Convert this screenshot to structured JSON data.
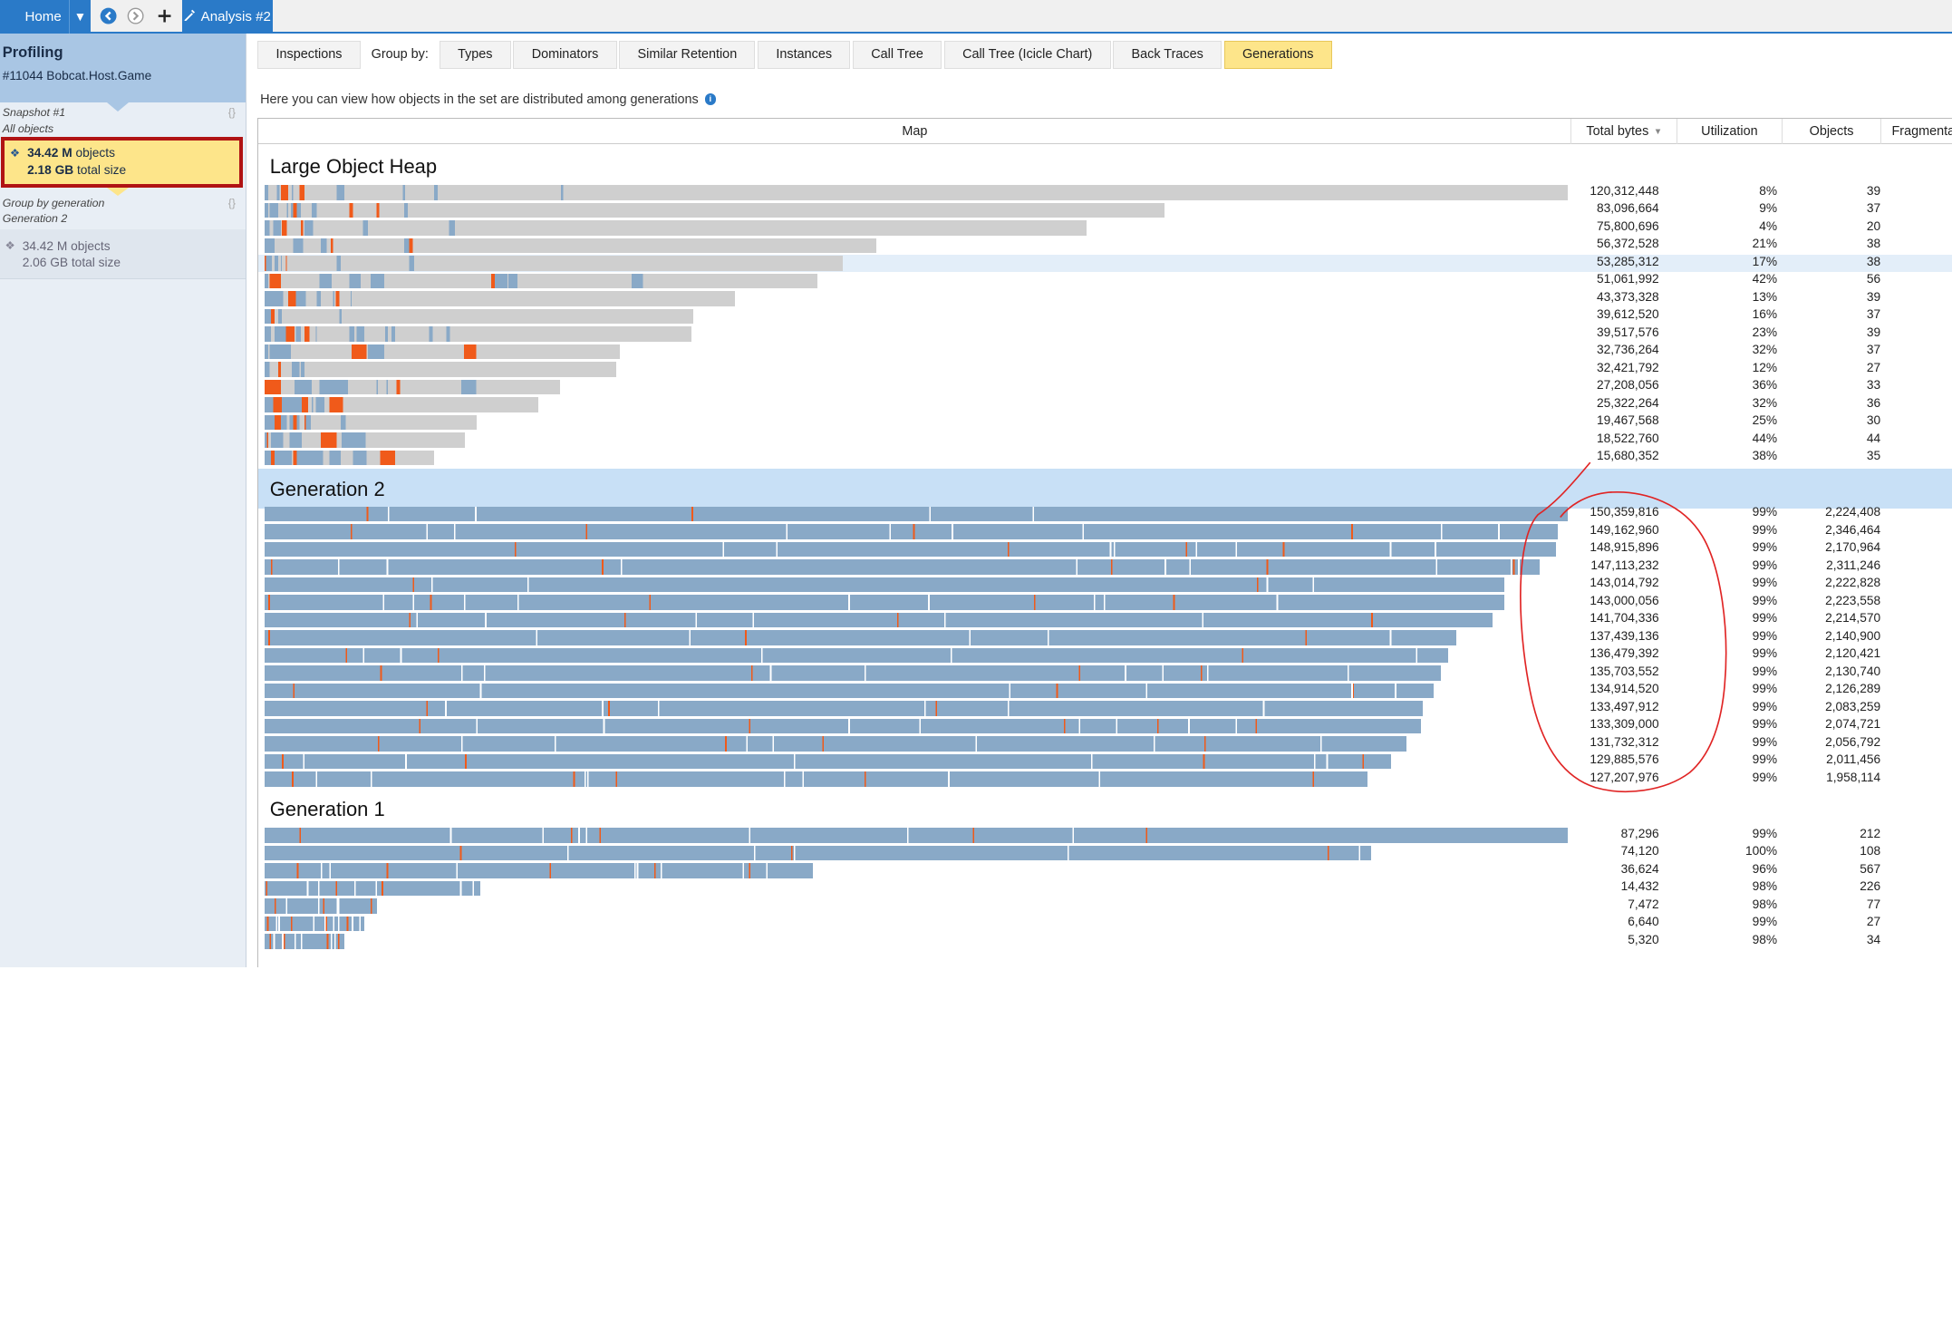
{
  "topbar": {
    "home_label": "Home",
    "analysis_tab_label": "Analysis #2",
    "icons": [
      "menu-dropdown-icon",
      "back-icon",
      "forward-icon",
      "add-icon",
      "analysis-icon"
    ]
  },
  "sidebar": {
    "title": "Profiling",
    "subtitle": "#11044 Bobcat.Host.Game",
    "snapshot_label": "Snapshot #1",
    "snapshot_sub": "All objects",
    "selected": {
      "objects_value": "34.42 M",
      "objects_unit": "objects",
      "size_value": "2.18 GB",
      "size_unit": "total size"
    },
    "group_label": "Group by generation",
    "group_sub": "Generation 2",
    "group_item": {
      "objects_value": "34.42 M",
      "objects_unit": "objects",
      "size_value": "2.06 GB",
      "size_unit": "total size"
    },
    "braces": "{}"
  },
  "tabs": {
    "items": [
      "Inspections",
      "Group by:",
      "Types",
      "Dominators",
      "Similar Retention",
      "Instances",
      "Call Tree",
      "Call Tree (Icicle Chart)",
      "Back Traces",
      "Generations"
    ],
    "active": "Generations"
  },
  "description": "Here you can view how objects in the set are distributed among generations",
  "columns": {
    "map": "Map",
    "total_bytes": "Total bytes",
    "utilization": "Utilization",
    "objects": "Objects",
    "fragmentation": "Fragmenta"
  },
  "colors": {
    "bar_blue": "#89a9c7",
    "bar_gray": "#cfcfcf",
    "accent_orange": "#f05a1a",
    "highlight_row": "#e3eef9",
    "section_band": "#c8e0f6",
    "annotation_red": "#e02424"
  },
  "sections": [
    {
      "title": "Large Object Heap",
      "rows": [
        {
          "bytes": "120,312,448",
          "util": "8%",
          "objects": "39",
          "fill": 0.08,
          "len": 1.0
        },
        {
          "bytes": "83,096,664",
          "util": "9%",
          "objects": "37",
          "fill": 0.09,
          "len": 0.691
        },
        {
          "bytes": "75,800,696",
          "util": "4%",
          "objects": "20",
          "fill": 0.04,
          "len": 0.63
        },
        {
          "bytes": "56,372,528",
          "util": "21%",
          "objects": "38",
          "fill": 0.21,
          "len": 0.469
        },
        {
          "bytes": "53,285,312",
          "util": "17%",
          "objects": "38",
          "fill": 0.17,
          "len": 0.443,
          "highlight": true
        },
        {
          "bytes": "51,061,992",
          "util": "42%",
          "objects": "56",
          "fill": 0.42,
          "len": 0.424
        },
        {
          "bytes": "43,373,328",
          "util": "13%",
          "objects": "39",
          "fill": 0.13,
          "len": 0.361
        },
        {
          "bytes": "39,612,520",
          "util": "16%",
          "objects": "37",
          "fill": 0.16,
          "len": 0.329
        },
        {
          "bytes": "39,517,576",
          "util": "23%",
          "objects": "39",
          "fill": 0.23,
          "len": 0.328
        },
        {
          "bytes": "32,736,264",
          "util": "32%",
          "objects": "37",
          "fill": 0.32,
          "len": 0.272
        },
        {
          "bytes": "32,421,792",
          "util": "12%",
          "objects": "27",
          "fill": 0.12,
          "len": 0.269
        },
        {
          "bytes": "27,208,056",
          "util": "36%",
          "objects": "33",
          "fill": 0.36,
          "len": 0.226
        },
        {
          "bytes": "25,322,264",
          "util": "32%",
          "objects": "36",
          "fill": 0.32,
          "len": 0.21
        },
        {
          "bytes": "19,467,568",
          "util": "25%",
          "objects": "30",
          "fill": 0.25,
          "len": 0.162
        },
        {
          "bytes": "18,522,760",
          "util": "44%",
          "objects": "44",
          "fill": 0.44,
          "len": 0.154
        },
        {
          "bytes": "15,680,352",
          "util": "38%",
          "objects": "35",
          "fill": 0.38,
          "len": 0.13
        }
      ]
    },
    {
      "title": "Generation 2",
      "rows": [
        {
          "bytes": "150,359,816",
          "util": "99%",
          "objects": "2,224,408",
          "fill": 0.99,
          "len": 1.0
        },
        {
          "bytes": "149,162,960",
          "util": "99%",
          "objects": "2,346,464",
          "fill": 0.99,
          "len": 0.992
        },
        {
          "bytes": "148,915,896",
          "util": "99%",
          "objects": "2,170,964",
          "fill": 0.99,
          "len": 0.99
        },
        {
          "bytes": "147,113,232",
          "util": "99%",
          "objects": "2,311,246",
          "fill": 0.99,
          "len": 0.978
        },
        {
          "bytes": "143,014,792",
          "util": "99%",
          "objects": "2,222,828",
          "fill": 0.99,
          "len": 0.951
        },
        {
          "bytes": "143,000,056",
          "util": "99%",
          "objects": "2,223,558",
          "fill": 0.99,
          "len": 0.951
        },
        {
          "bytes": "141,704,336",
          "util": "99%",
          "objects": "2,214,570",
          "fill": 0.99,
          "len": 0.942
        },
        {
          "bytes": "137,439,136",
          "util": "99%",
          "objects": "2,140,900",
          "fill": 0.99,
          "len": 0.914
        },
        {
          "bytes": "136,479,392",
          "util": "99%",
          "objects": "2,120,421",
          "fill": 0.99,
          "len": 0.908
        },
        {
          "bytes": "135,703,552",
          "util": "99%",
          "objects": "2,130,740",
          "fill": 0.99,
          "len": 0.903
        },
        {
          "bytes": "134,914,520",
          "util": "99%",
          "objects": "2,126,289",
          "fill": 0.99,
          "len": 0.897
        },
        {
          "bytes": "133,497,912",
          "util": "99%",
          "objects": "2,083,259",
          "fill": 0.99,
          "len": 0.888
        },
        {
          "bytes": "133,309,000",
          "util": "99%",
          "objects": "2,074,721",
          "fill": 0.99,
          "len": 0.887
        },
        {
          "bytes": "131,732,312",
          "util": "99%",
          "objects": "2,056,792",
          "fill": 0.99,
          "len": 0.876
        },
        {
          "bytes": "129,885,576",
          "util": "99%",
          "objects": "2,011,456",
          "fill": 0.99,
          "len": 0.864
        },
        {
          "bytes": "127,207,976",
          "util": "99%",
          "objects": "1,958,114",
          "fill": 0.99,
          "len": 0.846
        }
      ]
    },
    {
      "title": "Generation 1",
      "rows": [
        {
          "bytes": "87,296",
          "util": "99%",
          "objects": "212",
          "fill": 0.99,
          "len": 1.0
        },
        {
          "bytes": "74,120",
          "util": "100%",
          "objects": "108",
          "fill": 1.0,
          "len": 0.849
        },
        {
          "bytes": "36,624",
          "util": "96%",
          "objects": "567",
          "fill": 0.96,
          "len": 0.42
        },
        {
          "bytes": "14,432",
          "util": "98%",
          "objects": "226",
          "fill": 0.98,
          "len": 0.165
        },
        {
          "bytes": "7,472",
          "util": "98%",
          "objects": "77",
          "fill": 0.98,
          "len": 0.086
        },
        {
          "bytes": "6,640",
          "util": "99%",
          "objects": "27",
          "fill": 0.99,
          "len": 0.076
        },
        {
          "bytes": "5,320",
          "util": "98%",
          "objects": "34",
          "fill": 0.98,
          "len": 0.061
        }
      ]
    }
  ]
}
